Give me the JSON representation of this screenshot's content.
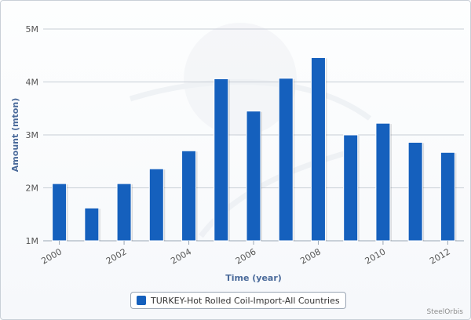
{
  "chart_data": {
    "type": "bar",
    "title": "",
    "xlabel": "Time (year)",
    "ylabel": "Amount (mton)",
    "categories": [
      "2000",
      "2001",
      "2002",
      "2003",
      "2004",
      "2005",
      "2006",
      "2007",
      "2008",
      "2009",
      "2010",
      "2011",
      "2012"
    ],
    "x_tick_labels": [
      "2000",
      "2002",
      "2004",
      "2006",
      "2008",
      "2010",
      "2012"
    ],
    "series": [
      {
        "name": "TURKEY-Hot Rolled Coil-Import-All Countries",
        "color": "#1560bd",
        "values": [
          2.08,
          1.62,
          2.08,
          2.36,
          2.7,
          4.06,
          3.45,
          4.07,
          4.46,
          3.0,
          3.22,
          2.86,
          2.67
        ]
      }
    ],
    "ylim": [
      1,
      5
    ],
    "y_ticks": [
      1,
      2,
      3,
      4,
      5
    ],
    "y_tick_labels": [
      "1M",
      "2M",
      "3M",
      "4M",
      "5M"
    ],
    "grid": true,
    "legend_position": "bottom-center"
  },
  "credit": "SteelOrbis"
}
